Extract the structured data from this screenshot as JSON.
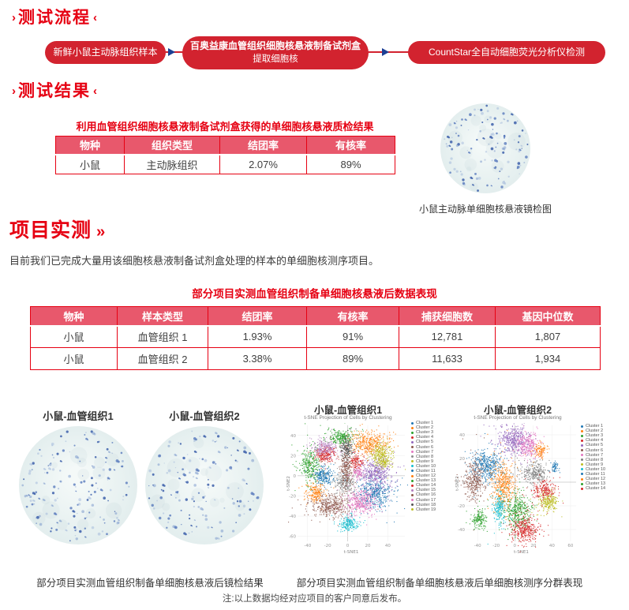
{
  "colors": {
    "accent_red": "#e60012",
    "pill_red": "#d2232f",
    "table_header_bg": "#e8586c",
    "arrow_blue": "#1c3f94",
    "body_text": "#3c3c3c"
  },
  "section_process": {
    "deco_left": "›",
    "deco_right": "‹",
    "title": "测试流程",
    "steps": [
      {
        "label": "新鲜小鼠主动脉组织样本"
      },
      {
        "label": "百奥益康血管组织细胞核悬液制备试剂盒",
        "sublabel": "提取细胞核"
      },
      {
        "label": "CountStar全自动细胞荧光分析仪检测"
      }
    ]
  },
  "section_results": {
    "deco_left": "›",
    "deco_right": "‹",
    "title": "测试结果",
    "table_title": "利用血管组织细胞核悬液制备试剂盒获得的单细胞核悬液质检结果",
    "table": {
      "headers": [
        "物种",
        "组织类型",
        "结团率",
        "有核率"
      ],
      "rows": [
        [
          "小鼠",
          "主动脉组织",
          "2.07%",
          "89%"
        ]
      ]
    },
    "micro_caption": "小鼠主动脉单细胞核悬液镜检图",
    "micro_fig": {
      "seed": 7,
      "dots": 120
    }
  },
  "section_project": {
    "title": "项目实测",
    "title_deco": "››",
    "intro": "目前我们已完成大量用该细胞核悬液制备试剂盒处理的样本的单细胞核测序项目。",
    "table_title": "部分项目实测血管组织制备单细胞核悬液后数据表现",
    "table": {
      "headers": [
        "物种",
        "样本类型",
        "结团率",
        "有核率",
        "捕获细胞数",
        "基因中位数"
      ],
      "rows": [
        [
          "小鼠",
          "血管组织 1",
          "1.93%",
          "91%",
          "12,781",
          "1,807"
        ],
        [
          "小鼠",
          "血管组织 2",
          "3.38%",
          "89%",
          "11,633",
          "1,934"
        ]
      ]
    },
    "micro_figs": [
      {
        "title": "小鼠-血管组织1",
        "seed": 21,
        "dots": 160
      },
      {
        "title": "小鼠-血管组织2",
        "seed": 55,
        "dots": 150
      }
    ],
    "caption_left": "部分项目实测血管组织制备单细胞核悬液后镜检结果",
    "caption_right": "部分项目实测血管组织制备单细胞核悬液后单细胞核测序分群表现",
    "note": "注:以上数据均经对应项目的客户同意后发布。"
  },
  "chart_data": [
    {
      "type": "scatter",
      "title": "小鼠-血管组织1",
      "subtitle": "t-SNE Projection of Cells by Clustering",
      "xlabel": "t-SNE1",
      "ylabel": "t-SNE2",
      "xlim": [
        -50,
        57
      ],
      "ylim": [
        -65,
        50
      ],
      "xticks": [
        -40,
        -20,
        0,
        20,
        40
      ],
      "yticks": [
        -60,
        -40,
        -20,
        0,
        20,
        40
      ],
      "legend_position": "right",
      "grid": true,
      "seed": 42,
      "clusters": [
        {
          "name": "Cluster 1",
          "color": "#1f77b4",
          "cx": 27,
          "cy": -17,
          "sx": 8,
          "sy": 7,
          "n": 440
        },
        {
          "name": "Cluster 2",
          "color": "#ff7f0e",
          "cx": 21,
          "cy": 33,
          "sx": 9,
          "sy": 5.5,
          "n": 400
        },
        {
          "name": "Cluster 3",
          "color": "#2ca02c",
          "cx": -38,
          "cy": 10,
          "sx": 5,
          "sy": 8,
          "n": 300
        },
        {
          "name": "Cluster 4",
          "color": "#d62728",
          "cx": -23,
          "cy": 22,
          "sx": 5,
          "sy": 4,
          "n": 220
        },
        {
          "name": "Cluster 5",
          "color": "#9467bd",
          "cx": 28,
          "cy": 3,
          "sx": 7.5,
          "sy": 7,
          "n": 430
        },
        {
          "name": "Cluster 6",
          "color": "#8c564b",
          "cx": -17,
          "cy": -29,
          "sx": 9,
          "sy": 6,
          "n": 430
        },
        {
          "name": "Cluster 7",
          "color": "#e377c2",
          "cx": 13,
          "cy": -26,
          "sx": 7,
          "sy": 6,
          "n": 380
        },
        {
          "name": "Cluster 8",
          "color": "#8c8c8c",
          "cx": -3,
          "cy": -7,
          "sx": 5,
          "sy": 5,
          "n": 250
        },
        {
          "name": "Cluster 9",
          "color": "#bcbd22",
          "cx": 33,
          "cy": 22,
          "sx": 5,
          "sy": 5,
          "n": 250
        },
        {
          "name": "Cluster 10",
          "color": "#17becf",
          "cx": 1,
          "cy": -47,
          "sx": 5,
          "sy": 3.5,
          "n": 190
        },
        {
          "name": "Cluster 11",
          "color": "#1f77b4",
          "cx": -24,
          "cy": 0,
          "sx": 5,
          "sy": 4.5,
          "n": 230
        },
        {
          "name": "Cluster 12",
          "color": "#ff7f0e",
          "cx": -33,
          "cy": -16,
          "sx": 4.5,
          "sy": 4,
          "n": 180
        },
        {
          "name": "Cluster 13",
          "color": "#2ca02c",
          "cx": -6,
          "cy": 39,
          "sx": 6,
          "sy": 4,
          "n": 240
        },
        {
          "name": "Cluster 14",
          "color": "#d62728",
          "cx": 8,
          "cy": 14,
          "sx": 3.5,
          "sy": 3.5,
          "n": 130
        },
        {
          "name": "Cluster 15",
          "color": "#b57fc0",
          "cx": -24,
          "cy": 28,
          "sx": 6,
          "sy": 4,
          "n": 230
        },
        {
          "name": "Cluster 16",
          "color": "#8c564b",
          "cx": -2,
          "cy": 7,
          "sx": 3,
          "sy": 8,
          "n": 240
        },
        {
          "name": "Cluster 17",
          "color": "#e377c2",
          "cx": 10,
          "cy": 3,
          "sx": 2.5,
          "sy": 2.5,
          "n": 80
        },
        {
          "name": "Cluster 18",
          "color": "#545454",
          "cx": -1,
          "cy": 28,
          "sx": 3,
          "sy": 4.5,
          "n": 170
        },
        {
          "name": "Cluster 19",
          "color": "#bcbd22",
          "cx": 36,
          "cy": 13,
          "sx": 3,
          "sy": 2.5,
          "n": 90
        }
      ]
    },
    {
      "type": "scatter",
      "title": "小鼠-血管组织2",
      "subtitle": "t-SNE Projection of Cells by Clustering",
      "xlabel": "t-SNE1",
      "ylabel": "t-SNE2",
      "xlim": [
        -52,
        66
      ],
      "ylim": [
        -50,
        48
      ],
      "xticks": [
        -40,
        -20,
        0,
        20,
        40,
        60
      ],
      "yticks": [
        -40,
        -20,
        0,
        20,
        40
      ],
      "legend_position": "right",
      "grid": true,
      "seed": 99,
      "clusters": [
        {
          "name": "Cluster 1",
          "color": "#1f77b4",
          "cx": -30,
          "cy": 14,
          "sx": 8,
          "sy": 6,
          "n": 430
        },
        {
          "name": "Cluster 2",
          "color": "#ff7f0e",
          "cx": -12,
          "cy": -3,
          "sx": 6,
          "sy": 9,
          "n": 460
        },
        {
          "name": "Cluster 3",
          "color": "#2ca02c",
          "cx": 3,
          "cy": -24,
          "sx": 6.5,
          "sy": 7,
          "n": 400
        },
        {
          "name": "Cluster 4",
          "color": "#d62728",
          "cx": 9,
          "cy": -40,
          "sx": 7,
          "sy": 5,
          "n": 370
        },
        {
          "name": "Cluster 5",
          "color": "#9467bd",
          "cx": -2,
          "cy": 36,
          "sx": 8,
          "sy": 6,
          "n": 430
        },
        {
          "name": "Cluster 6",
          "color": "#8c564b",
          "cx": -44,
          "cy": 1,
          "sx": 5,
          "sy": 8,
          "n": 340
        },
        {
          "name": "Cluster 7",
          "color": "#e377c2",
          "cx": 14,
          "cy": 31,
          "sx": 5.5,
          "sy": 5,
          "n": 270
        },
        {
          "name": "Cluster 8",
          "color": "#7f7f7f",
          "cx": 21,
          "cy": 8,
          "sx": 7,
          "sy": 4.5,
          "n": 300
        },
        {
          "name": "Cluster 9",
          "color": "#bcbd22",
          "cx": 36,
          "cy": -16,
          "sx": 5,
          "sy": 4,
          "n": 240
        },
        {
          "name": "Cluster 10",
          "color": "#17becf",
          "cx": -17,
          "cy": -22,
          "sx": 3.5,
          "sy": 6.5,
          "n": 210
        },
        {
          "name": "Cluster 11",
          "color": "#1f77b4",
          "cx": 43,
          "cy": 13,
          "sx": 2,
          "sy": 2,
          "n": 60
        },
        {
          "name": "Cluster 12",
          "color": "#ff7f0e",
          "cx": 27,
          "cy": 27,
          "sx": 3,
          "sy": 3,
          "n": 110
        },
        {
          "name": "Cluster 13",
          "color": "#2ca02c",
          "cx": -39,
          "cy": -31,
          "sx": 4,
          "sy": 4,
          "n": 160
        },
        {
          "name": "Cluster 14",
          "color": "#d62728",
          "cx": 31,
          "cy": -6,
          "sx": 6,
          "sy": 4,
          "n": 210
        }
      ]
    }
  ]
}
